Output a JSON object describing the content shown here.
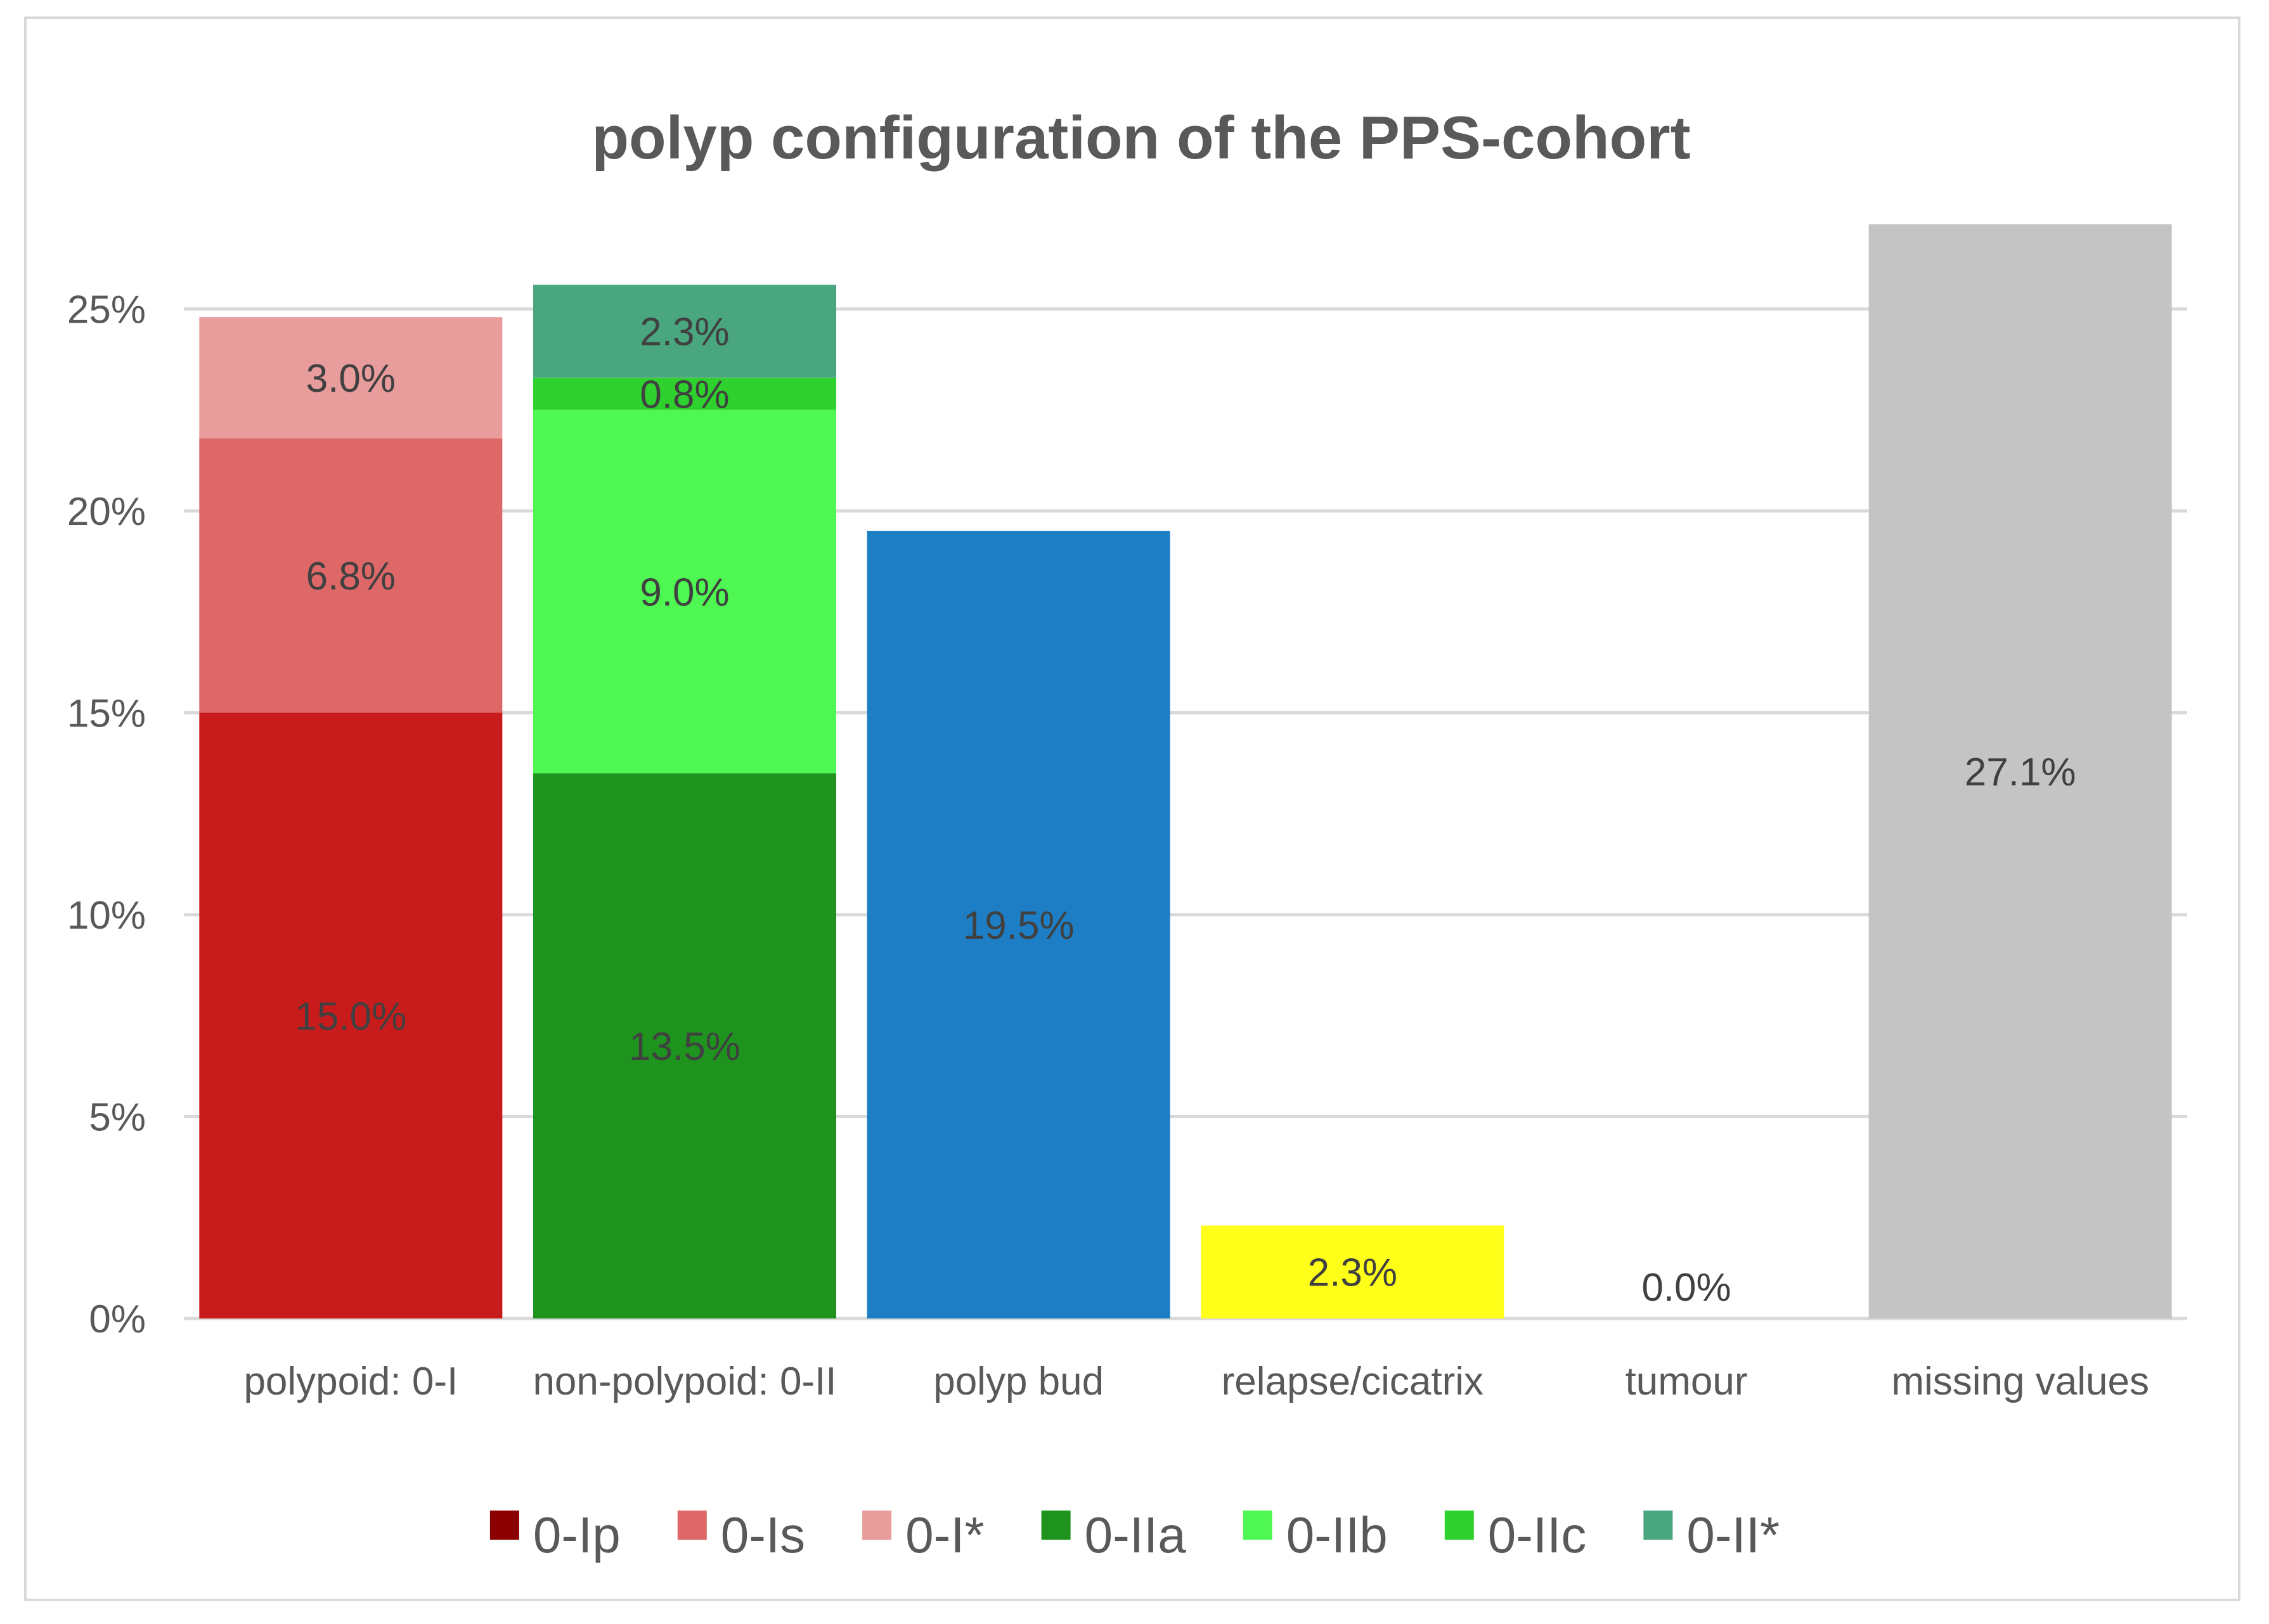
{
  "chart_data": {
    "type": "bar",
    "stacked": true,
    "title": "polyp configuration of the PPS-cohort",
    "xlabel": "",
    "ylabel": "",
    "ylim": [
      0,
      27.1
    ],
    "yticks": [
      "0%",
      "5%",
      "10%",
      "15%",
      "20%",
      "25%"
    ],
    "ytick_values": [
      0,
      5,
      10,
      15,
      20,
      25
    ],
    "grid": true,
    "legend_position": "bottom",
    "categories": [
      "polypoid: 0-I",
      "non-polypoid: 0-II",
      "polyp bud",
      "relapse/cicatrix",
      "tumour",
      "missing values"
    ],
    "stacks": [
      {
        "category": "polypoid: 0-I",
        "segments": [
          {
            "series": "0-Ip",
            "value": 15.0,
            "label": "15.0%",
            "color": "#c81c1c"
          },
          {
            "series": "0-Is",
            "value": 6.8,
            "label": "6.8%",
            "color": "#de6868"
          },
          {
            "series": "0-I*",
            "value": 3.0,
            "label": "3.0%",
            "color": "#e89c9c"
          }
        ]
      },
      {
        "category": "non-polypoid: 0-II",
        "segments": [
          {
            "series": "0-IIa",
            "value": 13.5,
            "label": "13.5%",
            "color": "#1e941e"
          },
          {
            "series": "0-IIb",
            "value": 9.0,
            "label": "9.0%",
            "color": "#4ef752"
          },
          {
            "series": "0-IIc",
            "value": 0.8,
            "label": "0.8%",
            "color": "#2ed12e"
          },
          {
            "series": "0-II*",
            "value": 2.3,
            "label": "2.3%",
            "color": "#4aa67e"
          }
        ]
      },
      {
        "category": "polyp bud",
        "segments": [
          {
            "series": "polyp bud",
            "value": 19.5,
            "label": "19.5%",
            "color": "#1d7ec6"
          }
        ]
      },
      {
        "category": "relapse/cicatrix",
        "segments": [
          {
            "series": "relapse/cicatrix",
            "value": 2.3,
            "label": "2.3%",
            "color": "#ffff1a"
          }
        ]
      },
      {
        "category": "tumour",
        "segments": [
          {
            "series": "tumour",
            "value": 0.0,
            "label": "0.0%",
            "color": "#c0c0c0"
          }
        ]
      },
      {
        "category": "missing values",
        "segments": [
          {
            "series": "missing values",
            "value": 27.1,
            "label": "27.1%",
            "color": "#c4c4c4"
          }
        ]
      }
    ],
    "legend": [
      {
        "name": "0-Ip",
        "color": "#8b0000"
      },
      {
        "name": "0-Is",
        "color": "#de6868"
      },
      {
        "name": "0-I*",
        "color": "#e89c9c"
      },
      {
        "name": "0-IIa",
        "color": "#1e941e"
      },
      {
        "name": "0-IIb",
        "color": "#4ef752"
      },
      {
        "name": "0-IIc",
        "color": "#2ed12e"
      },
      {
        "name": "0-II*",
        "color": "#4aa67e"
      }
    ],
    "colors": {
      "gridline": "#d9d9d9",
      "text": "#595959",
      "label": "#404040"
    }
  }
}
